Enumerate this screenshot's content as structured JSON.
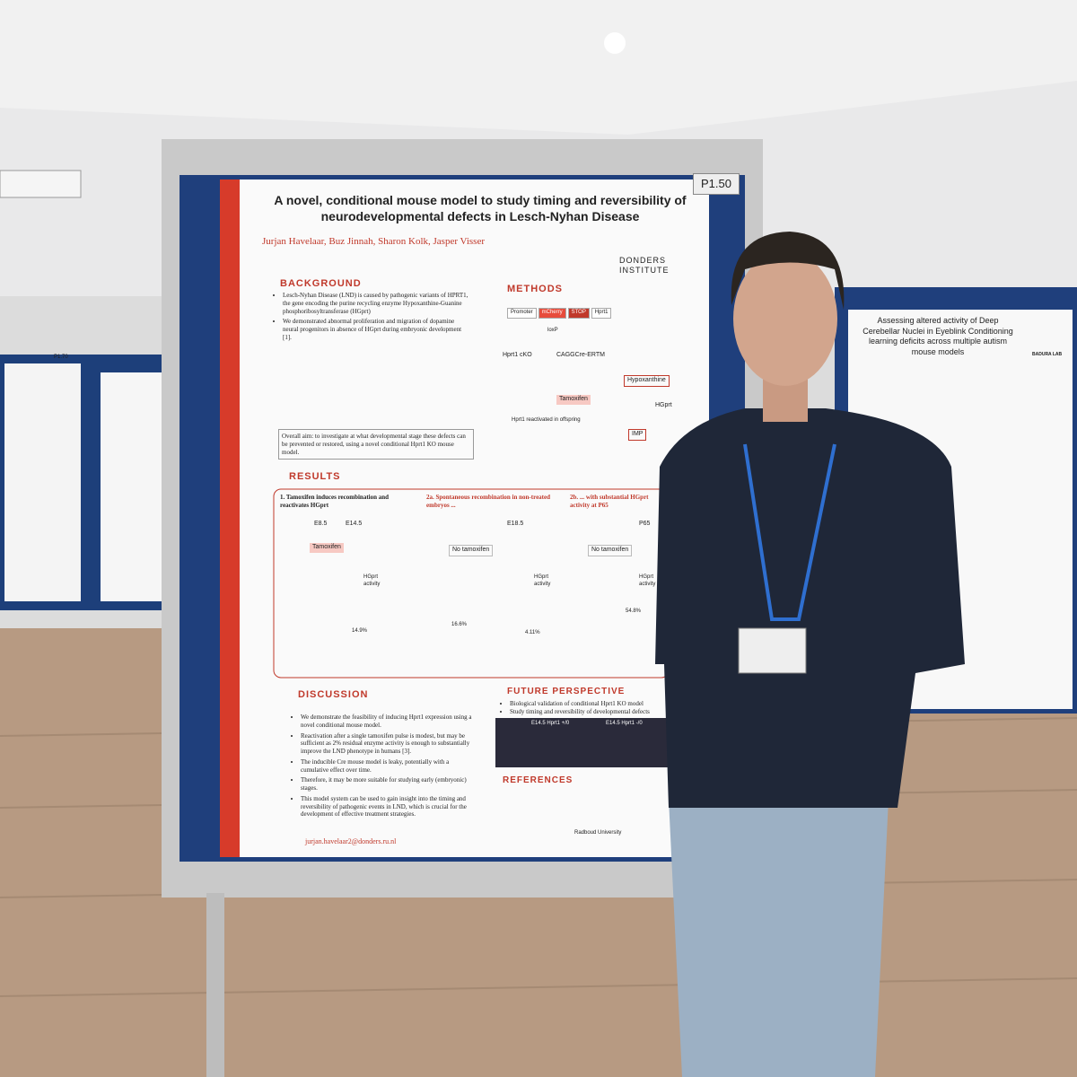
{
  "board_label": "P1.50",
  "left_board_label": "P1.70",
  "poster": {
    "title": "A novel, conditional mouse model to study timing and reversibility of neurodevelopmental defects in Lesch-Nyhan Disease",
    "authors": [
      "Jurjan Havelaar",
      "Buz Jinnah",
      "Sharon Kolk",
      "Jasper Visser"
    ],
    "institute": "DONDERS INSTITUTE",
    "background": {
      "heading": "BACKGROUND",
      "bullets": [
        "Lesch-Nyhan Disease (LND) is caused by pathogenic variants of HPRT1, the gene encoding the purine recycling enzyme Hypoxanthine-Guanine phosphoribosyltransferase (HGprt)",
        "We demonstrated abnormal proliferation and migration of dopamine neural progenitors in absence of HGprt during embryonic development [1]."
      ],
      "aim": "Overall aim: to investigate at what developmental stage these defects can be prevented or restored, using a novel conditional Hprt1 KO mouse model."
    },
    "methods": {
      "heading": "METHODS",
      "construct": [
        "Promoter",
        "mCherry",
        "STOP",
        "Hprt1"
      ],
      "loxp": "loxP",
      "cross": [
        "Hprt1 cKO",
        "CAGGCre-ERTM"
      ],
      "treatment": "Tamoxifen",
      "outcome": "Hprt1 reactivated in offspring",
      "pathway": [
        "Hypoxanthine",
        "HGprt",
        "IMP"
      ]
    },
    "results": {
      "heading": "RESULTS",
      "panels": [
        {
          "title": "1. Tamoxifen induces recombination and reactivates HGprt",
          "stages": [
            "E8.5",
            "E14.5"
          ],
          "treatment": "Tamoxifen",
          "measure": "HGprt activity",
          "label": "14.9%"
        },
        {
          "title": "2a. Spontaneous recombination in non-treated embryos ...",
          "stages": [
            "E18.5"
          ],
          "treatment": "No tamoxifen",
          "measure": "HGprt activity",
          "label": "16.6%",
          "label2": "4.11%"
        },
        {
          "title": "2b. ... with substantial HGprt activity at P65",
          "stages": [
            "P65"
          ],
          "treatment": "No tamoxifen",
          "measure": "HGprt activity",
          "label": "54.8%"
        }
      ]
    },
    "discussion": {
      "heading": "DISCUSSION",
      "bullets": [
        "We demonstrate the feasibility of inducing Hprt1 expression using a novel conditional mouse model.",
        "Reactivation after a single tamoxifen pulse is modest, but may be sufficient as 2% residual enzyme activity is enough to substantially improve the LND phenotype in humans [3].",
        "The inducible Cre mouse model is leaky, potentially with a cumulative effect over time.",
        "Therefore, it may be more suitable for studying early (embryonic) stages.",
        "This model system can be used to gain insight into the timing and reversibility of pathogenic events in LND, which is crucial for the development of effective treatment strategies."
      ]
    },
    "future": {
      "heading": "FUTURE PERSPECTIVE",
      "bullets": [
        "Biological validation of conditional Hprt1 KO model",
        "Study timing and reversibility of developmental defects"
      ],
      "images": [
        "E14.5 Hprt1 +/0",
        "E14.5 Hprt1 -/0"
      ]
    },
    "references_heading": "REFERENCES",
    "email": "jurjan.havelaar2@donders.ru.nl",
    "footer": "Radboud University"
  },
  "right_poster": {
    "title": "Assessing altered activity of Deep Cerebellar Nuclei in Eyeblink Conditioning learning deficits across multiple autism mouse models",
    "lab": "BADURA LAB"
  }
}
